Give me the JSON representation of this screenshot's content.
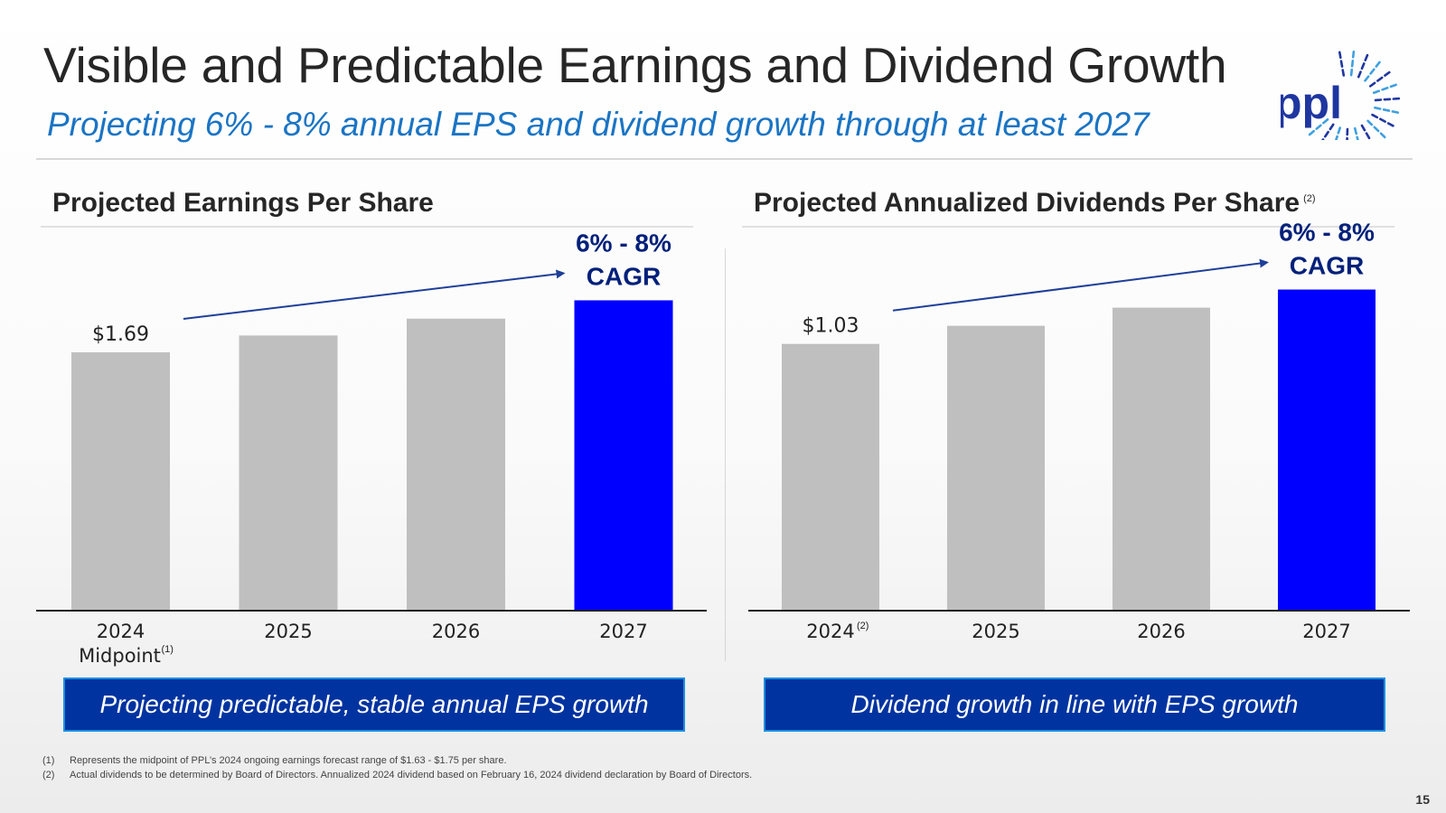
{
  "header": {
    "title": "Visible and Predictable Earnings and Dividend Growth",
    "subtitle": "Projecting 6% - 8% annual EPS and dividend growth through at least 2027",
    "logo_text": "ppl"
  },
  "colors": {
    "accent_blue": "#0000ff",
    "bar_gray": "#bfbfbf",
    "navy_text": "#00207a",
    "arrow": "#1f3f99",
    "callout_bg": "#0033a0"
  },
  "chart_data": [
    {
      "type": "bar",
      "title": "Projected Earnings Per Share",
      "title_note": "",
      "categories": [
        "2024",
        "2025",
        "2026",
        "2027"
      ],
      "category_sublabels": [
        "Midpoint",
        "",
        "",
        ""
      ],
      "category_notes": [
        "(1)",
        "",
        "",
        ""
      ],
      "values": [
        1.69,
        1.8,
        1.91,
        2.03
      ],
      "value_labels": [
        "$1.69",
        "",
        "",
        ""
      ],
      "highlight_index": 3,
      "annotation": [
        "6% - 8%",
        "CAGR"
      ],
      "ylim": [
        0,
        2.6
      ],
      "xlabel": "",
      "ylabel": ""
    },
    {
      "type": "bar",
      "title": "Projected Annualized Dividends Per Share",
      "title_note": "(2)",
      "categories": [
        "2024",
        "2025",
        "2026",
        "2027"
      ],
      "category_sublabels": [
        "",
        "",
        "",
        ""
      ],
      "category_notes": [
        "(2)",
        "",
        "",
        ""
      ],
      "values": [
        1.03,
        1.1,
        1.17,
        1.24
      ],
      "value_labels": [
        "$1.03",
        "",
        "",
        ""
      ],
      "highlight_index": 3,
      "annotation": [
        "6% - 8%",
        "CAGR"
      ],
      "ylim": [
        0,
        1.5
      ],
      "xlabel": "",
      "ylabel": ""
    }
  ],
  "callouts": {
    "left": "Projecting predictable, stable annual EPS growth",
    "right": "Dividend growth in line with EPS growth"
  },
  "footnotes": [
    {
      "num": "(1)",
      "text": "Represents the midpoint of PPL’s 2024 ongoing earnings forecast range of $1.63 - $1.75 per share."
    },
    {
      "num": "(2)",
      "text": "Actual dividends to be determined by Board of Directors. Annualized 2024 dividend based on February 16, 2024 dividend declaration by Board of Directors."
    }
  ],
  "page_number": "15"
}
